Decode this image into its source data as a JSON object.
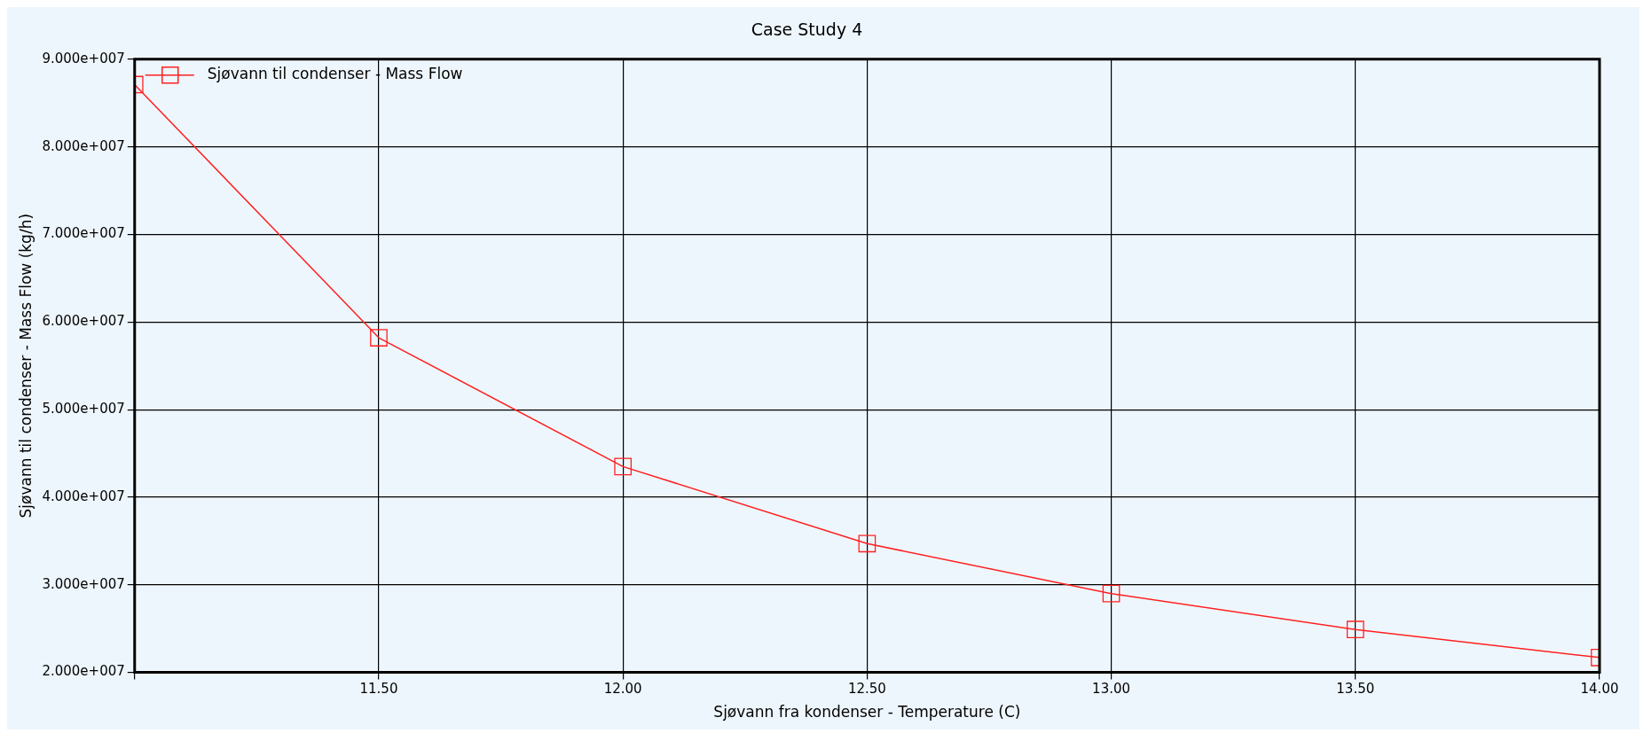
{
  "chart_data": {
    "type": "line",
    "title": "Case Study 4",
    "xlabel": "Sjøvann fra kondenser - Temperature (C)",
    "ylabel": "Sjøvann til condenser - Mass Flow (kg/h)",
    "x": [
      11,
      11.5,
      12,
      12.5,
      13,
      13.5,
      14
    ],
    "series": [
      {
        "name": "Sjøvann til condenser - Mass Flow",
        "color": "#ff2020",
        "values": [
          87100000,
          58200000,
          43500000,
          34700000,
          29000000,
          24900000,
          21700000
        ]
      }
    ],
    "xlim": [
      11,
      14
    ],
    "xticks": [
      {
        "value": 11,
        "label": null
      },
      {
        "value": 11.5,
        "label": "11.50"
      },
      {
        "value": 12,
        "label": "12.00"
      },
      {
        "value": 12.5,
        "label": "12.50"
      },
      {
        "value": 13,
        "label": "13.00"
      },
      {
        "value": 13.5,
        "label": "13.50"
      },
      {
        "value": 14,
        "label": "14.00"
      }
    ],
    "ylim": [
      20000000,
      90000000
    ],
    "yticks": [
      {
        "value": 20000000,
        "label": "2.000e+007"
      },
      {
        "value": 30000000,
        "label": "3.000e+007"
      },
      {
        "value": 40000000,
        "label": "4.000e+007"
      },
      {
        "value": 50000000,
        "label": "5.000e+007"
      },
      {
        "value": 60000000,
        "label": "6.000e+007"
      },
      {
        "value": 70000000,
        "label": "7.000e+007"
      },
      {
        "value": 80000000,
        "label": "8.000e+007"
      },
      {
        "value": 90000000,
        "label": "9.000e+007"
      }
    ],
    "grid": true,
    "legend": "top left",
    "marker": "square",
    "line_style": "solid"
  }
}
